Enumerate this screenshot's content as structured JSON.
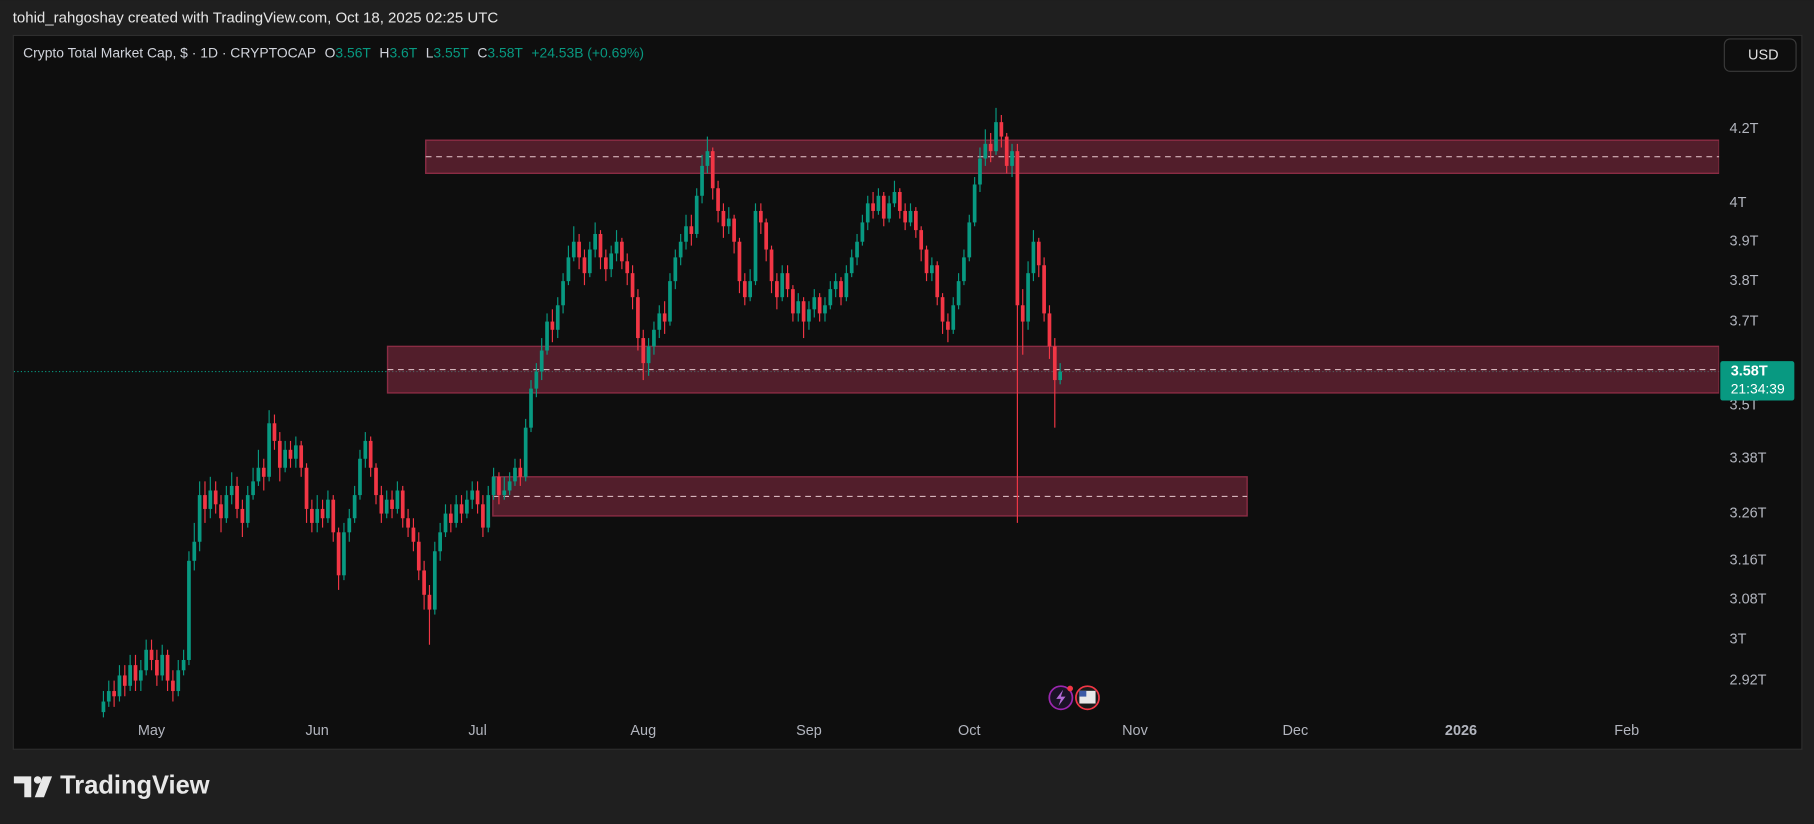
{
  "header": {
    "credit": "tohid_rahgoshay created with TradingView.com, Oct 18, 2025 02:25 UTC",
    "currency_button": "USD",
    "brand": "TradingView"
  },
  "chart_data": {
    "type": "candlestick",
    "legend": {
      "title": "Crypto Total Market Cap, $ · 1D · CRYPTOCAP",
      "o_label": "O",
      "open": "3.56T",
      "h_label": "H",
      "high": "3.6T",
      "l_label": "L",
      "low": "3.55T",
      "c_label": "C",
      "close": "3.58T",
      "change": "+24.53B (+0.69%)"
    },
    "last_price_label": "3.58T",
    "countdown": "21:34:39",
    "log": true,
    "grid": false,
    "up_color": "#089981",
    "down_color": "#f23645",
    "zone_color": "#8a2c44",
    "ylim": [
      2.85,
      4.47
    ],
    "yticks": [
      {
        "value": 4.2,
        "label": "4.2T"
      },
      {
        "value": 4,
        "label": "4T"
      },
      {
        "value": 3.9,
        "label": "3.9T"
      },
      {
        "value": 3.8,
        "label": "3.8T"
      },
      {
        "value": 3.7,
        "label": "3.7T"
      },
      {
        "value": 3.5,
        "label": "3.5T"
      },
      {
        "value": 3.38,
        "label": "3.38T"
      },
      {
        "value": 3.26,
        "label": "3.26T"
      },
      {
        "value": 3.16,
        "label": "3.16T"
      },
      {
        "value": 3.08,
        "label": "3.08T"
      },
      {
        "value": 3,
        "label": "3T"
      },
      {
        "value": 2.92,
        "label": "2.92T"
      }
    ],
    "zones": [
      {
        "high": 4.17,
        "low": 4.08
      },
      {
        "high": 3.64,
        "low": 3.53
      },
      {
        "high": 3.34,
        "low": 3.255
      }
    ],
    "categories": [
      null,
      null,
      null,
      null,
      null,
      null,
      null,
      null,
      null,
      "May",
      null,
      null,
      null,
      null,
      null,
      null,
      null,
      null,
      null,
      null,
      null,
      null,
      null,
      null,
      null,
      null,
      null,
      null,
      null,
      null,
      null,
      null,
      null,
      null,
      null,
      null,
      null,
      null,
      null,
      null,
      "Jun",
      null,
      null,
      null,
      null,
      null,
      null,
      null,
      null,
      null,
      null,
      null,
      null,
      null,
      null,
      null,
      null,
      null,
      null,
      null,
      null,
      null,
      null,
      null,
      null,
      null,
      null,
      null,
      null,
      null,
      "Jul",
      null,
      null,
      null,
      null,
      null,
      null,
      null,
      null,
      null,
      null,
      null,
      null,
      null,
      null,
      null,
      null,
      null,
      null,
      null,
      null,
      null,
      null,
      null,
      null,
      null,
      null,
      null,
      null,
      null,
      null,
      "Aug",
      null,
      null,
      null,
      null,
      null,
      null,
      null,
      null,
      null,
      null,
      null,
      null,
      null,
      null,
      null,
      null,
      null,
      null,
      null,
      null,
      null,
      null,
      null,
      null,
      null,
      null,
      null,
      null,
      null,
      null,
      "Sep",
      null,
      null,
      null,
      null,
      null,
      null,
      null,
      null,
      null,
      null,
      null,
      null,
      null,
      null,
      null,
      null,
      null,
      null,
      null,
      null,
      null,
      null,
      null,
      null,
      null,
      null,
      null,
      null,
      null,
      "Oct",
      null,
      null,
      null,
      null,
      null,
      null,
      null,
      null,
      null,
      null,
      null,
      null,
      null,
      null,
      null,
      null,
      null,
      null,
      null,
      null,
      null,
      null,
      null,
      null,
      null,
      null,
      null,
      null,
      null,
      null,
      "Nov",
      null,
      null,
      null,
      null,
      null,
      null,
      null,
      null,
      null,
      null,
      null,
      null,
      null,
      null,
      null,
      null,
      null,
      null,
      null,
      null,
      null,
      null,
      null,
      null,
      null,
      null,
      null,
      null,
      null,
      "Dec",
      null,
      null,
      null,
      null,
      null,
      null,
      null,
      null,
      null,
      null,
      null,
      null,
      null,
      null,
      null,
      null,
      null,
      null,
      null,
      null,
      null,
      null,
      null,
      null,
      null,
      null,
      null,
      null,
      null,
      null,
      "2026",
      null,
      null,
      null,
      null,
      null,
      null,
      null,
      null,
      null,
      null,
      null,
      null,
      null,
      null,
      null,
      null,
      null,
      null,
      null,
      null,
      null,
      null,
      null,
      null,
      null,
      null,
      null,
      null,
      null,
      null,
      "Feb",
      null,
      null,
      null,
      null,
      null,
      null,
      null,
      null,
      null,
      null,
      null,
      null,
      null,
      null,
      null,
      null,
      null
    ],
    "open": [
      2.86,
      2.88,
      2.9,
      2.89,
      2.93,
      2.91,
      2.95,
      2.92,
      2.94,
      2.98,
      2.96,
      2.93,
      2.97,
      2.92,
      2.9,
      2.94,
      2.96,
      3.16,
      3.2,
      3.3,
      3.27,
      3.31,
      3.28,
      3.25,
      3.3,
      3.32,
      3.27,
      3.24,
      3.3,
      3.33,
      3.36,
      3.34,
      3.46,
      3.42,
      3.36,
      3.4,
      3.38,
      3.41,
      3.36,
      3.27,
      3.24,
      3.27,
      3.25,
      3.29,
      3.22,
      3.13,
      3.22,
      3.25,
      3.3,
      3.38,
      3.42,
      3.36,
      3.3,
      3.26,
      3.29,
      3.27,
      3.31,
      3.25,
      3.23,
      3.2,
      3.14,
      3.09,
      3.06,
      3.18,
      3.22,
      3.26,
      3.24,
      3.28,
      3.26,
      3.29,
      3.31,
      3.28,
      3.23,
      3.3,
      3.34,
      3.3,
      3.31,
      3.33,
      3.36,
      3.34,
      3.45,
      3.54,
      3.58,
      3.63,
      3.7,
      3.68,
      3.74,
      3.8,
      3.86,
      3.9,
      3.86,
      3.82,
      3.88,
      3.92,
      3.86,
      3.83,
      3.87,
      3.9,
      3.85,
      3.82,
      3.76,
      3.66,
      3.6,
      3.64,
      3.68,
      3.72,
      3.7,
      3.8,
      3.86,
      3.9,
      3.94,
      3.92,
      4.02,
      4.1,
      4.14,
      4.04,
      3.98,
      3.94,
      3.96,
      3.9,
      3.8,
      3.76,
      3.8,
      3.98,
      3.95,
      3.88,
      3.8,
      3.76,
      3.82,
      3.78,
      3.72,
      3.75,
      3.7,
      3.73,
      3.76,
      3.72,
      3.74,
      3.78,
      3.8,
      3.76,
      3.82,
      3.86,
      3.9,
      3.95,
      4.0,
      3.98,
      4.02,
      3.96,
      4.0,
      4.03,
      3.98,
      3.95,
      3.98,
      3.93,
      3.88,
      3.82,
      3.84,
      3.76,
      3.7,
      3.68,
      3.74,
      3.8,
      3.86,
      3.95,
      4.05,
      4.12,
      4.16,
      4.14,
      4.22,
      4.18,
      4.1,
      4.14,
      3.74,
      3.7,
      3.82,
      3.9,
      3.84,
      3.72,
      3.64,
      3.56,
      null,
      null,
      null,
      null,
      null,
      null,
      null,
      null,
      null,
      null,
      null,
      null,
      null,
      null,
      null,
      null,
      null,
      null,
      null,
      null,
      null,
      null,
      null,
      null,
      null,
      null,
      null,
      null,
      null,
      null,
      null,
      null,
      null,
      null,
      null,
      null,
      null,
      null,
      null,
      null,
      null,
      null,
      null,
      null,
      null,
      null,
      null,
      null,
      null,
      null,
      null,
      null,
      null,
      null,
      null,
      null,
      null,
      null,
      null,
      null,
      null,
      null,
      null,
      null,
      null,
      null,
      null,
      null,
      null,
      null,
      null,
      null,
      null,
      null,
      null,
      null,
      null,
      null,
      null,
      null,
      null,
      null,
      null,
      null,
      null,
      null,
      null,
      null,
      null,
      null,
      null,
      null,
      null,
      null,
      null,
      null,
      null,
      null,
      null,
      null,
      null,
      null,
      null,
      null,
      null,
      null,
      null,
      null,
      null,
      null,
      null,
      null,
      null,
      null,
      null,
      null,
      null,
      null,
      null,
      null,
      null,
      null,
      null
    ],
    "high": [
      2.9,
      2.92,
      2.92,
      2.95,
      2.95,
      2.97,
      2.97,
      2.96,
      3.0,
      3.0,
      2.98,
      2.99,
      2.98,
      2.94,
      2.96,
      2.98,
      3.18,
      3.24,
      3.33,
      3.33,
      3.34,
      3.33,
      3.3,
      3.32,
      3.35,
      3.34,
      3.29,
      3.32,
      3.36,
      3.4,
      3.38,
      3.49,
      3.48,
      3.44,
      3.42,
      3.42,
      3.43,
      3.42,
      3.37,
      3.29,
      3.3,
      3.29,
      3.31,
      3.3,
      3.23,
      3.24,
      3.27,
      3.32,
      3.4,
      3.44,
      3.43,
      3.37,
      3.32,
      3.31,
      3.31,
      3.33,
      3.32,
      3.27,
      3.25,
      3.22,
      3.16,
      3.11,
      3.2,
      3.24,
      3.28,
      3.28,
      3.3,
      3.3,
      3.31,
      3.33,
      3.33,
      3.3,
      3.32,
      3.36,
      3.35,
      3.34,
      3.35,
      3.38,
      3.38,
      3.47,
      3.56,
      3.6,
      3.66,
      3.72,
      3.73,
      3.76,
      3.82,
      3.89,
      3.94,
      3.92,
      3.88,
      3.9,
      3.95,
      3.93,
      3.88,
      3.89,
      3.93,
      3.91,
      3.87,
      3.84,
      3.78,
      3.68,
      3.66,
      3.7,
      3.74,
      3.75,
      3.82,
      3.88,
      3.92,
      3.97,
      3.97,
      4.04,
      4.13,
      4.18,
      4.15,
      4.06,
      4.0,
      3.99,
      3.97,
      3.91,
      3.82,
      3.83,
      4.0,
      4.0,
      3.96,
      3.89,
      3.82,
      3.84,
      3.84,
      3.79,
      3.77,
      3.76,
      3.75,
      3.78,
      3.77,
      3.76,
      3.8,
      3.82,
      3.81,
      3.84,
      3.88,
      3.92,
      3.97,
      4.02,
      4.03,
      4.04,
      4.03,
      4.02,
      4.06,
      4.04,
      4.0,
      4.0,
      3.99,
      3.94,
      3.89,
      3.86,
      3.85,
      3.77,
      3.72,
      3.76,
      3.82,
      3.88,
      3.97,
      4.07,
      4.15,
      4.2,
      4.19,
      4.26,
      4.24,
      4.19,
      4.16,
      4.16,
      3.78,
      3.85,
      3.93,
      3.91,
      3.86,
      3.74,
      3.66,
      3.6,
      null,
      null,
      null,
      null,
      null,
      null,
      null,
      null,
      null,
      null,
      null,
      null,
      null,
      null,
      null,
      null,
      null,
      null,
      null,
      null,
      null,
      null,
      null,
      null,
      null,
      null,
      null,
      null,
      null,
      null,
      null,
      null,
      null,
      null,
      null,
      null,
      null,
      null,
      null,
      null,
      null,
      null,
      null,
      null,
      null,
      null,
      null,
      null,
      null,
      null,
      null,
      null,
      null,
      null,
      null,
      null,
      null,
      null,
      null,
      null,
      null,
      null,
      null,
      null,
      null,
      null,
      null,
      null,
      null,
      null,
      null,
      null,
      null,
      null,
      null,
      null,
      null,
      null,
      null,
      null,
      null,
      null,
      null,
      null,
      null,
      null,
      null,
      null,
      null,
      null,
      null,
      null,
      null,
      null,
      null,
      null,
      null,
      null,
      null,
      null,
      null,
      null,
      null,
      null,
      null,
      null,
      null,
      null,
      null,
      null,
      null,
      null,
      null,
      null,
      null,
      null,
      null,
      null,
      null,
      null,
      null,
      null,
      null
    ],
    "low": [
      2.85,
      2.87,
      2.87,
      2.88,
      2.89,
      2.9,
      2.9,
      2.9,
      2.93,
      2.94,
      2.91,
      2.92,
      2.9,
      2.88,
      2.89,
      2.93,
      2.95,
      3.14,
      3.18,
      3.24,
      3.25,
      3.26,
      3.22,
      3.24,
      3.28,
      3.25,
      3.21,
      3.23,
      3.29,
      3.32,
      3.31,
      3.33,
      3.4,
      3.33,
      3.35,
      3.36,
      3.36,
      3.34,
      3.24,
      3.22,
      3.22,
      3.23,
      3.24,
      3.2,
      3.1,
      3.12,
      3.2,
      3.24,
      3.29,
      3.36,
      3.34,
      3.28,
      3.24,
      3.25,
      3.25,
      3.26,
      3.23,
      3.21,
      3.18,
      3.12,
      3.06,
      2.99,
      3.05,
      3.16,
      3.21,
      3.22,
      3.23,
      3.24,
      3.25,
      3.27,
      3.26,
      3.21,
      3.22,
      3.29,
      3.28,
      3.29,
      3.3,
      3.32,
      3.32,
      3.33,
      3.44,
      3.52,
      3.56,
      3.62,
      3.65,
      3.66,
      3.72,
      3.79,
      3.85,
      3.83,
      3.79,
      3.81,
      3.86,
      3.83,
      3.8,
      3.81,
      3.85,
      3.83,
      3.79,
      3.73,
      3.63,
      3.56,
      3.57,
      3.62,
      3.66,
      3.67,
      3.69,
      3.78,
      3.84,
      3.88,
      3.89,
      3.91,
      4.0,
      4.08,
      4.01,
      3.95,
      3.91,
      3.92,
      3.87,
      3.77,
      3.74,
      3.75,
      3.79,
      3.92,
      3.85,
      3.77,
      3.73,
      3.75,
      3.76,
      3.7,
      3.7,
      3.66,
      3.68,
      3.71,
      3.7,
      3.7,
      3.73,
      3.76,
      3.74,
      3.75,
      3.81,
      3.84,
      3.89,
      3.93,
      3.96,
      3.97,
      3.94,
      3.95,
      3.99,
      3.96,
      3.93,
      3.94,
      3.91,
      3.85,
      3.8,
      3.8,
      3.74,
      3.67,
      3.65,
      3.67,
      3.73,
      3.79,
      3.85,
      3.94,
      4.03,
      4.1,
      4.11,
      4.13,
      4.15,
      4.08,
      4.07,
      3.24,
      3.62,
      3.68,
      3.8,
      3.81,
      3.7,
      3.61,
      3.45,
      3.55,
      null,
      null,
      null,
      null,
      null,
      null,
      null,
      null,
      null,
      null,
      null,
      null,
      null,
      null,
      null,
      null,
      null,
      null,
      null,
      null,
      null,
      null,
      null,
      null,
      null,
      null,
      null,
      null,
      null,
      null,
      null,
      null,
      null,
      null,
      null,
      null,
      null,
      null,
      null,
      null,
      null,
      null,
      null,
      null,
      null,
      null,
      null,
      null,
      null,
      null,
      null,
      null,
      null,
      null,
      null,
      null,
      null,
      null,
      null,
      null,
      null,
      null,
      null,
      null,
      null,
      null,
      null,
      null,
      null,
      null,
      null,
      null,
      null,
      null,
      null,
      null,
      null,
      null,
      null,
      null,
      null,
      null,
      null,
      null,
      null,
      null,
      null,
      null,
      null,
      null,
      null,
      null,
      null,
      null,
      null,
      null,
      null,
      null,
      null,
      null,
      null,
      null,
      null,
      null,
      null,
      null,
      null,
      null,
      null,
      null,
      null,
      null,
      null,
      null,
      null,
      null,
      null,
      null,
      null,
      null,
      null,
      null,
      null
    ],
    "close": [
      2.88,
      2.9,
      2.89,
      2.93,
      2.91,
      2.95,
      2.92,
      2.94,
      2.98,
      2.96,
      2.93,
      2.97,
      2.92,
      2.9,
      2.94,
      2.96,
      3.16,
      3.2,
      3.3,
      3.27,
      3.31,
      3.28,
      3.25,
      3.3,
      3.32,
      3.27,
      3.24,
      3.3,
      3.33,
      3.36,
      3.34,
      3.46,
      3.42,
      3.36,
      3.4,
      3.38,
      3.41,
      3.36,
      3.27,
      3.24,
      3.27,
      3.25,
      3.29,
      3.22,
      3.13,
      3.22,
      3.25,
      3.3,
      3.38,
      3.42,
      3.36,
      3.3,
      3.26,
      3.29,
      3.27,
      3.31,
      3.25,
      3.23,
      3.2,
      3.14,
      3.09,
      3.06,
      3.18,
      3.22,
      3.26,
      3.24,
      3.28,
      3.26,
      3.29,
      3.31,
      3.28,
      3.23,
      3.3,
      3.34,
      3.3,
      3.31,
      3.33,
      3.36,
      3.34,
      3.45,
      3.54,
      3.58,
      3.63,
      3.7,
      3.68,
      3.74,
      3.8,
      3.86,
      3.9,
      3.86,
      3.82,
      3.88,
      3.92,
      3.86,
      3.83,
      3.87,
      3.9,
      3.85,
      3.82,
      3.76,
      3.66,
      3.6,
      3.64,
      3.68,
      3.72,
      3.7,
      3.8,
      3.86,
      3.9,
      3.94,
      3.92,
      4.02,
      4.1,
      4.14,
      4.04,
      3.98,
      3.94,
      3.96,
      3.9,
      3.8,
      3.76,
      3.8,
      3.98,
      3.95,
      3.88,
      3.8,
      3.76,
      3.82,
      3.78,
      3.72,
      3.75,
      3.7,
      3.73,
      3.76,
      3.72,
      3.74,
      3.78,
      3.8,
      3.76,
      3.82,
      3.86,
      3.9,
      3.95,
      4.0,
      3.98,
      4.02,
      3.96,
      4.0,
      4.03,
      3.98,
      3.95,
      3.98,
      3.93,
      3.88,
      3.82,
      3.84,
      3.76,
      3.7,
      3.68,
      3.74,
      3.8,
      3.86,
      3.95,
      4.05,
      4.12,
      4.16,
      4.14,
      4.22,
      4.18,
      4.1,
      4.14,
      3.74,
      3.7,
      3.82,
      3.9,
      3.84,
      3.72,
      3.64,
      3.56,
      3.58,
      null,
      null,
      null,
      null,
      null,
      null,
      null,
      null,
      null,
      null,
      null,
      null,
      null,
      null,
      null,
      null,
      null,
      null,
      null,
      null,
      null,
      null,
      null,
      null,
      null,
      null,
      null,
      null,
      null,
      null,
      null,
      null,
      null,
      null,
      null,
      null,
      null,
      null,
      null,
      null,
      null,
      null,
      null,
      null,
      null,
      null,
      null,
      null,
      null,
      null,
      null,
      null,
      null,
      null,
      null,
      null,
      null,
      null,
      null,
      null,
      null,
      null,
      null,
      null,
      null,
      null,
      null,
      null,
      null,
      null,
      null,
      null,
      null,
      null,
      null,
      null,
      null,
      null,
      null,
      null,
      null,
      null,
      null,
      null,
      null,
      null,
      null,
      null,
      null,
      null,
      null,
      null,
      null,
      null,
      null,
      null,
      null,
      null,
      null,
      null,
      null,
      null,
      null,
      null,
      null,
      null,
      null,
      null,
      null,
      null,
      null,
      null,
      null,
      null,
      null,
      null,
      null,
      null,
      null,
      null,
      null,
      null,
      null
    ]
  }
}
